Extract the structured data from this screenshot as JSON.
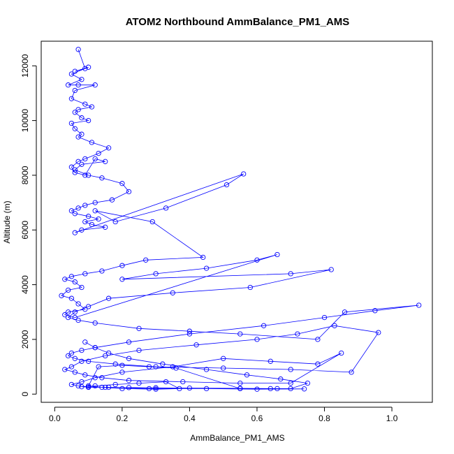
{
  "chart_data": {
    "type": "line",
    "title": "ATOM2 Northbound AmmBalance_PM1_AMS",
    "xlabel": "AmmBalance_PM1_AMS",
    "ylabel": "Altitude (m)",
    "xlim": [
      -0.04,
      1.12
    ],
    "ylim": [
      -300,
      12900
    ],
    "xticks": [
      0.0,
      0.2,
      0.4,
      0.6,
      0.8,
      1.0
    ],
    "xtick_labels": [
      "0.0",
      "0.2",
      "0.4",
      "0.6",
      "0.8",
      "1.0"
    ],
    "yticks": [
      0,
      2000,
      4000,
      6000,
      8000,
      10000,
      12000
    ],
    "ytick_labels": [
      "0",
      "2000",
      "4000",
      "6000",
      "8000",
      "10000",
      "12000"
    ],
    "grid": false,
    "marker": "open-circle",
    "colors": {
      "series": "#0000ff",
      "axis": "#000000",
      "background": "#ffffff"
    },
    "series": [
      {
        "x": [
          0.07,
          0.09,
          0.06,
          0.1,
          0.05,
          0.08,
          0.04,
          0.07,
          0.12,
          0.06,
          0.05,
          0.09,
          0.11,
          0.07,
          0.06,
          0.08,
          0.1,
          0.05,
          0.06,
          0.08,
          0.07,
          0.11,
          0.16,
          0.13,
          0.09,
          0.07,
          0.05,
          0.06,
          0.09,
          0.12,
          0.15,
          0.08,
          0.06,
          0.1,
          0.14,
          0.2,
          0.22,
          0.17,
          0.12,
          0.09,
          0.07,
          0.05,
          0.06,
          0.1,
          0.13,
          0.09,
          0.11,
          0.15,
          0.08,
          0.06,
          0.56,
          0.51,
          0.33,
          0.18,
          0.12,
          0.29,
          0.44,
          0.27,
          0.2,
          0.14,
          0.09,
          0.05,
          0.03,
          0.06,
          0.08,
          0.04,
          0.02,
          0.05,
          0.07,
          0.09,
          0.04,
          0.03,
          0.06,
          0.66,
          0.6,
          0.45,
          0.3,
          0.2,
          0.7,
          0.82,
          0.58,
          0.35,
          0.16,
          0.1,
          0.06,
          0.04,
          0.07,
          0.12,
          0.25,
          0.4,
          0.55,
          0.78,
          0.86,
          1.08,
          0.95,
          0.8,
          0.62,
          0.4,
          0.22,
          0.12,
          0.08,
          0.05,
          0.04,
          0.06,
          0.1,
          0.18,
          0.3,
          0.5,
          0.7,
          0.88,
          0.96,
          0.83,
          0.72,
          0.6,
          0.42,
          0.25,
          0.15,
          0.08,
          0.05,
          0.03,
          0.06,
          0.09,
          0.14,
          0.22,
          0.38,
          0.55,
          0.7,
          0.85,
          0.78,
          0.64,
          0.5,
          0.35,
          0.2,
          0.12,
          0.08,
          0.05,
          0.07,
          0.1,
          0.16,
          0.28,
          0.45,
          0.6,
          0.74,
          0.66,
          0.55,
          0.4,
          0.3,
          0.22,
          0.15,
          0.1,
          0.08,
          0.12,
          0.18,
          0.25,
          0.33,
          0.37,
          0.3,
          0.2,
          0.14,
          0.1,
          0.13,
          0.2,
          0.28,
          0.36,
          0.55,
          0.64,
          0.7,
          0.75,
          0.67,
          0.57,
          0.45,
          0.32,
          0.22,
          0.16,
          0.12,
          0.09
        ],
        "y": [
          12600,
          11900,
          11800,
          11950,
          11700,
          11500,
          11300,
          11300,
          11300,
          11100,
          10800,
          10600,
          10500,
          10400,
          10300,
          10100,
          10000,
          9900,
          9700,
          9500,
          9400,
          9200,
          9000,
          8800,
          8600,
          8500,
          8300,
          8100,
          8000,
          8600,
          8500,
          8400,
          8200,
          8000,
          7900,
          7700,
          7400,
          7100,
          7000,
          6900,
          6800,
          6700,
          6600,
          6500,
          6400,
          6300,
          6200,
          6100,
          6000,
          5900,
          8050,
          7650,
          6800,
          6300,
          6700,
          6300,
          5000,
          4900,
          4700,
          4500,
          4400,
          4300,
          4200,
          4100,
          3900,
          3800,
          3600,
          3500,
          3300,
          3100,
          3000,
          2900,
          2800,
          5100,
          4900,
          4600,
          4400,
          4200,
          4400,
          4550,
          3900,
          3700,
          3500,
          3200,
          3000,
          2800,
          2700,
          2600,
          2400,
          2300,
          2200,
          2000,
          3000,
          3250,
          3050,
          2800,
          2500,
          2200,
          1900,
          1700,
          1600,
          1500,
          1400,
          1300,
          1200,
          1100,
          1000,
          950,
          900,
          800,
          2250,
          2500,
          2200,
          2000,
          1800,
          1600,
          1400,
          1200,
          1000,
          900,
          800,
          700,
          600,
          500,
          450,
          400,
          400,
          1500,
          1100,
          1200,
          1300,
          1000,
          800,
          600,
          450,
          350,
          300,
          250,
          250,
          200,
          200,
          180,
          190,
          200,
          210,
          220,
          230,
          240,
          250,
          260,
          270,
          300,
          350,
          400,
          450,
          200,
          180,
          200,
          250,
          300,
          1000,
          1050,
          1000,
          950,
          200,
          200,
          200,
          400,
          550,
          700,
          900,
          1100,
          1300,
          1500,
          1700,
          1900
        ]
      }
    ]
  }
}
